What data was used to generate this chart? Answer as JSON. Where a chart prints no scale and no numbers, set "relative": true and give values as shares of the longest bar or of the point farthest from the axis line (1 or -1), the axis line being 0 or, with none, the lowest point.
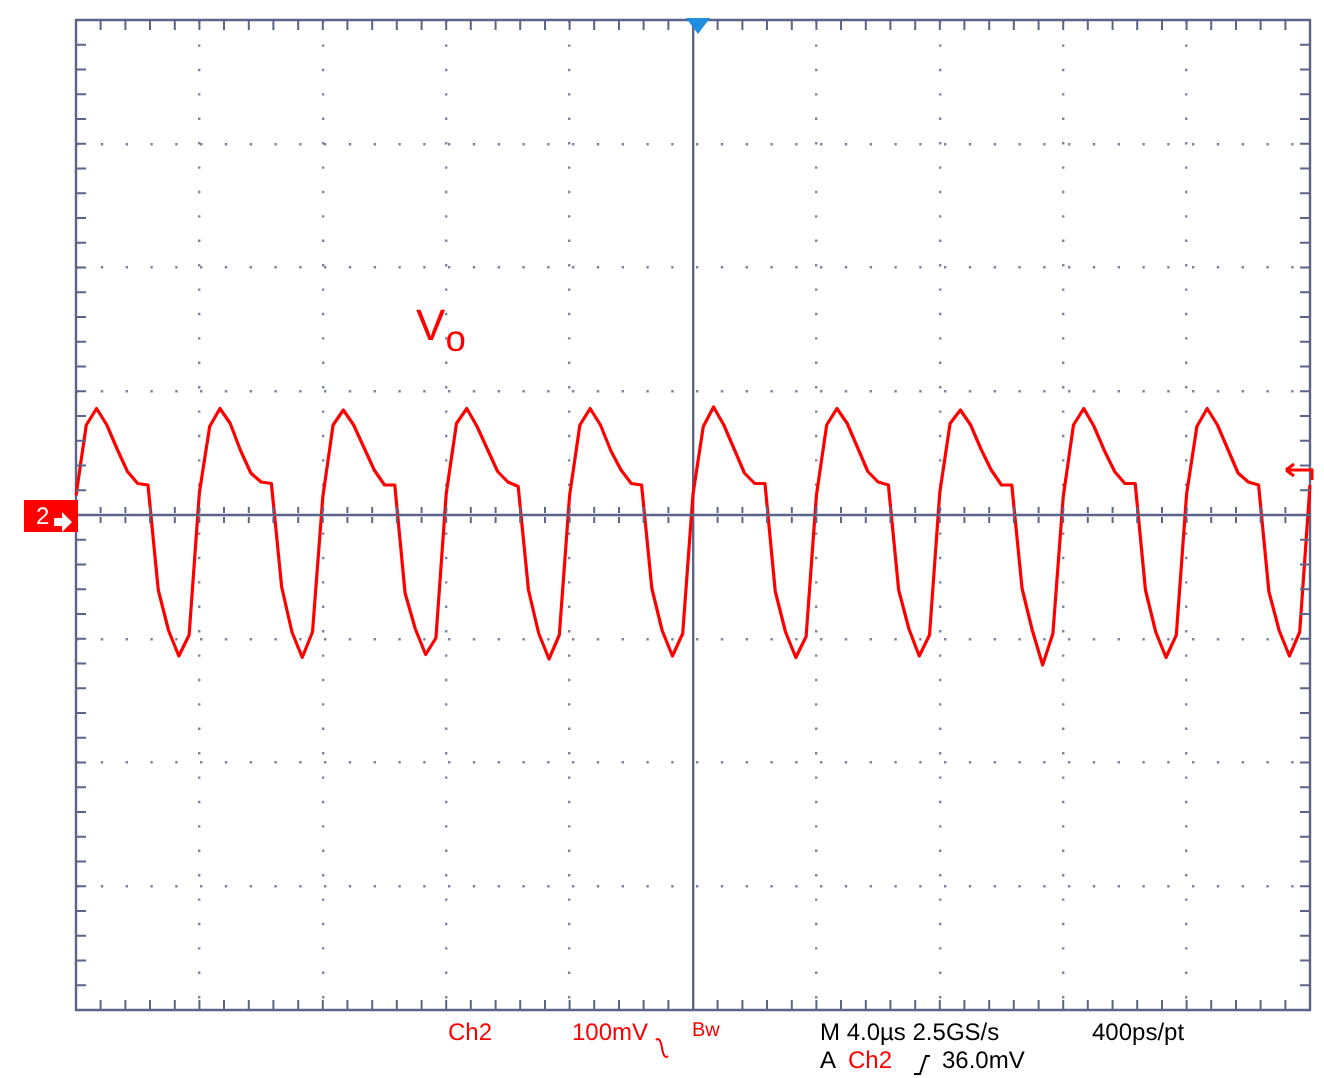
{
  "chart_data": {
    "type": "line",
    "relative": true,
    "grid": true,
    "legend": "top left",
    "marker": "none",
    "line_style": "solid",
    "categories": [
      null,
      null,
      null,
      null,
      null,
      null,
      null,
      null,
      null,
      null,
      null,
      null,
      null,
      null,
      null,
      null,
      null,
      null,
      null,
      null,
      null,
      null,
      null,
      null,
      null,
      null,
      null,
      null,
      null,
      null,
      null,
      null,
      null,
      null,
      null,
      null,
      null,
      null,
      null,
      null,
      null,
      null,
      null,
      null,
      null,
      null,
      null,
      null,
      null,
      null,
      null,
      null,
      null,
      null,
      null,
      null,
      null,
      null,
      null,
      null,
      null,
      null,
      null,
      null,
      null,
      null,
      null,
      null,
      null,
      null,
      null,
      null,
      null,
      null,
      null,
      null,
      null,
      null,
      null,
      null,
      null,
      null,
      null,
      null,
      null,
      null,
      null,
      null,
      null,
      null,
      null,
      null,
      null,
      null,
      null,
      null,
      null,
      null,
      null,
      null,
      null,
      null,
      null,
      null,
      null,
      null,
      null,
      null,
      null,
      null,
      null,
      null,
      null,
      null,
      null,
      null,
      null,
      null,
      null,
      null,
      null
    ],
    "series": [
      {
        "name": "V$_{o}$",
        "color": "#ff0000",
        "values": [
          0.13,
          0.6,
          0.71,
          0.6,
          0.44,
          0.29,
          0.21,
          0.2,
          -0.5,
          -0.77,
          -0.94,
          -0.8,
          0.15,
          0.59,
          0.71,
          0.61,
          0.43,
          0.28,
          0.22,
          0.21,
          -0.48,
          -0.78,
          -0.95,
          -0.78,
          0.12,
          0.6,
          0.7,
          0.6,
          0.45,
          0.3,
          0.2,
          0.2,
          -0.52,
          -0.76,
          -0.93,
          -0.82,
          0.14,
          0.61,
          0.71,
          0.59,
          0.44,
          0.29,
          0.22,
          0.19,
          -0.5,
          -0.79,
          -0.96,
          -0.8,
          0.13,
          0.6,
          0.71,
          0.6,
          0.43,
          0.3,
          0.21,
          0.2,
          -0.49,
          -0.77,
          -0.94,
          -0.79,
          0.14,
          0.59,
          0.72,
          0.6,
          0.44,
          0.28,
          0.21,
          0.21,
          -0.51,
          -0.78,
          -0.95,
          -0.81,
          0.13,
          0.6,
          0.71,
          0.61,
          0.45,
          0.29,
          0.22,
          0.2,
          -0.5,
          -0.76,
          -0.94,
          -0.8,
          0.15,
          0.61,
          0.7,
          0.6,
          0.44,
          0.3,
          0.2,
          0.2,
          -0.49,
          -0.77,
          -1,
          -0.79,
          0.12,
          0.6,
          0.71,
          0.59,
          0.43,
          0.29,
          0.21,
          0.21,
          -0.5,
          -0.78,
          -0.95,
          -0.8,
          0.14,
          0.59,
          0.71,
          0.6,
          0.44,
          0.28,
          0.22,
          0.2,
          -0.51,
          -0.77,
          -0.94,
          -0.78,
          0.2
        ]
      }
    ],
    "ref_lines": [
      {
        "axis": "y",
        "value": 0,
        "color": "#5c6488"
      }
    ],
    "annotations": [
      "2",
      "Ch2",
      "100mV",
      "Bw",
      "M 4.0µs 2.5GS/s",
      "400ps/pt",
      "A",
      "Ch2",
      "36.0mV"
    ]
  }
}
